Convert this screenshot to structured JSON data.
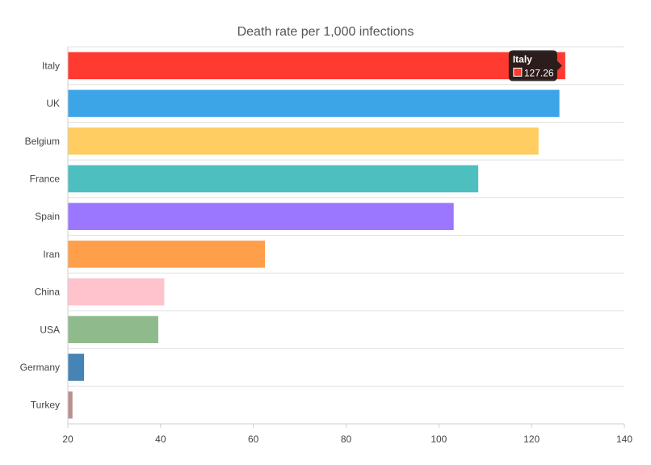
{
  "chart_data": {
    "type": "bar",
    "orientation": "horizontal",
    "title": "Death rate per 1,000 infections",
    "xlabel": "",
    "ylabel": "",
    "xlim": [
      20,
      140
    ],
    "xticks": [
      20,
      40,
      60,
      80,
      100,
      120,
      140
    ],
    "categories": [
      "Italy",
      "UK",
      "Belgium",
      "France",
      "Spain",
      "Iran",
      "China",
      "USA",
      "Germany",
      "Turkey"
    ],
    "values": [
      127.26,
      126.0,
      121.5,
      108.5,
      103.2,
      62.5,
      40.8,
      39.5,
      23.5,
      21.0
    ],
    "colors": [
      "#ff3a30",
      "#3ca5e8",
      "#ffcd62",
      "#4dbfbf",
      "#9b77ff",
      "#ff9f4a",
      "#ffc3cd",
      "#8fbb8c",
      "#4684b6",
      "#bc8f8f"
    ],
    "tooltip": {
      "title": "Italy",
      "value": "127.26",
      "swatch_color": "#ff3a30"
    }
  }
}
